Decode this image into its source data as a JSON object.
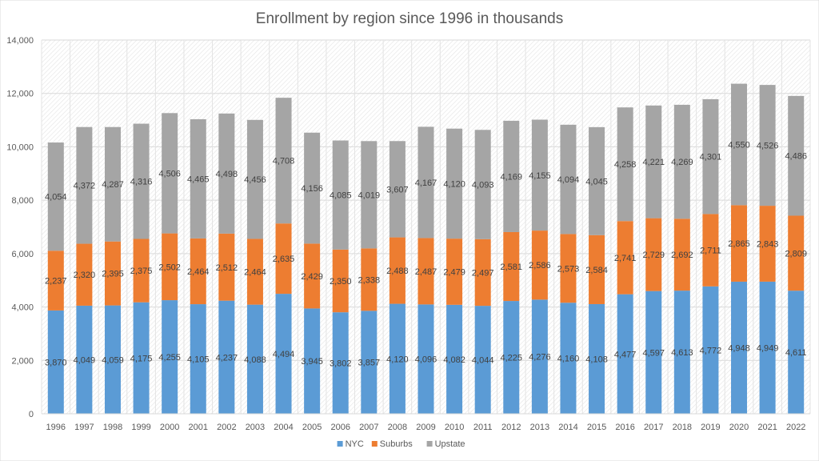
{
  "chart_data": {
    "type": "bar",
    "stacked": true,
    "title": "Enrollment by region since 1996 in thousands",
    "xlabel": "",
    "ylabel": "",
    "ylim": [
      0,
      14000
    ],
    "yticks": [
      0,
      2000,
      4000,
      6000,
      8000,
      10000,
      12000,
      14000
    ],
    "ytick_labels": [
      "0",
      "2,000",
      "4,000",
      "6,000",
      "8,000",
      "10,000",
      "12,000",
      "14,000"
    ],
    "grid": true,
    "legend_position": "bottom",
    "categories": [
      "1996",
      "1997",
      "1998",
      "1999",
      "2000",
      "2001",
      "2002",
      "2003",
      "2004",
      "2005",
      "2006",
      "2007",
      "2008",
      "2009",
      "2010",
      "2011",
      "2012",
      "2013",
      "2014",
      "2015",
      "2016",
      "2017",
      "2018",
      "2019",
      "2020",
      "2021",
      "2022"
    ],
    "series": [
      {
        "name": "NYC",
        "color": "#5b9bd5",
        "values": [
          3870,
          4049,
          4059,
          4175,
          4255,
          4105,
          4237,
          4088,
          4494,
          3945,
          3802,
          3857,
          4120,
          4096,
          4082,
          4044,
          4225,
          4276,
          4160,
          4108,
          4477,
          4597,
          4613,
          4772,
          4948,
          4949,
          4611
        ]
      },
      {
        "name": "Suburbs",
        "color": "#ed7d31",
        "values": [
          2237,
          2320,
          2395,
          2375,
          2502,
          2464,
          2512,
          2464,
          2635,
          2429,
          2350,
          2338,
          2488,
          2487,
          2479,
          2497,
          2581,
          2586,
          2573,
          2584,
          2741,
          2729,
          2692,
          2711,
          2865,
          2843,
          2809
        ]
      },
      {
        "name": "Upstate",
        "color": "#a5a5a5",
        "values": [
          4054,
          4372,
          4287,
          4316,
          4506,
          4465,
          4498,
          4456,
          4708,
          4156,
          4085,
          4019,
          3607,
          4167,
          4120,
          4093,
          4169,
          4155,
          4094,
          4045,
          4258,
          4221,
          4269,
          4301,
          4550,
          4526,
          4486
        ]
      }
    ],
    "data_labels": true
  }
}
